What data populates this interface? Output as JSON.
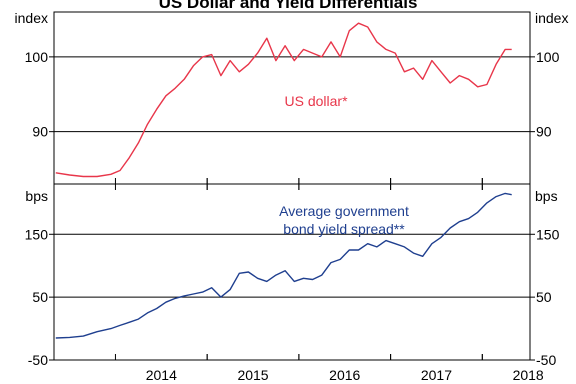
{
  "chart_data": {
    "type": "line",
    "title": "US Dollar and Yield Differentials",
    "x_ticks": [
      "2014",
      "2015",
      "2016",
      "2017",
      "2018"
    ],
    "grid": true,
    "panels": [
      {
        "id": "top",
        "y_unit": "index",
        "ylim": [
          83,
          106
        ],
        "y_ticks": [
          "90",
          "100"
        ],
        "series": [
          {
            "name": "US dollar*",
            "color": "#e8364a",
            "x": [
              2013.35,
              2013.5,
              2013.65,
              2013.8,
              2013.95,
              2014.05,
              2014.15,
              2014.25,
              2014.35,
              2014.45,
              2014.55,
              2014.65,
              2014.75,
              2014.85,
              2014.95,
              2015.05,
              2015.15,
              2015.25,
              2015.35,
              2015.45,
              2015.55,
              2015.65,
              2015.75,
              2015.85,
              2015.95,
              2016.05,
              2016.15,
              2016.25,
              2016.35,
              2016.45,
              2016.55,
              2016.65,
              2016.75,
              2016.85,
              2016.95,
              2017.05,
              2017.15,
              2017.25,
              2017.35,
              2017.45,
              2017.55,
              2017.65,
              2017.75,
              2017.85,
              2017.95,
              2018.05,
              2018.15,
              2018.25,
              2018.32
            ],
            "values": [
              84.5,
              84.2,
              84.0,
              84.0,
              84.3,
              84.8,
              86.5,
              88.5,
              91.0,
              93.0,
              94.8,
              95.8,
              97.0,
              98.8,
              100.0,
              100.3,
              97.5,
              99.5,
              98.0,
              99.0,
              100.5,
              102.5,
              99.5,
              101.5,
              99.5,
              101.0,
              100.5,
              100.0,
              102.0,
              100.0,
              103.5,
              104.5,
              104.0,
              102.0,
              101.0,
              100.5,
              98.0,
              98.5,
              97.0,
              99.5,
              98.0,
              96.5,
              97.5,
              97.0,
              96.0,
              96.3,
              99.0,
              101.0,
              101.0
            ]
          }
        ],
        "annotation": [
          "US dollar*"
        ]
      },
      {
        "id": "bottom",
        "y_unit": "bps",
        "ylim": [
          -50,
          230
        ],
        "y_ticks": [
          "-50",
          "50",
          "150"
        ],
        "series": [
          {
            "name": "Average government bond yield spread**",
            "color": "#1f3f8f",
            "x": [
              2013.35,
              2013.5,
              2013.65,
              2013.8,
              2013.95,
              2014.05,
              2014.15,
              2014.25,
              2014.35,
              2014.45,
              2014.55,
              2014.65,
              2014.75,
              2014.85,
              2014.95,
              2015.05,
              2015.15,
              2015.25,
              2015.35,
              2015.45,
              2015.55,
              2015.65,
              2015.75,
              2015.85,
              2015.95,
              2016.05,
              2016.15,
              2016.25,
              2016.35,
              2016.45,
              2016.55,
              2016.65,
              2016.75,
              2016.85,
              2016.95,
              2017.05,
              2017.15,
              2017.25,
              2017.35,
              2017.45,
              2017.55,
              2017.65,
              2017.75,
              2017.85,
              2017.95,
              2018.05,
              2018.15,
              2018.25,
              2018.32
            ],
            "values": [
              -15,
              -14,
              -12,
              -5,
              0,
              5,
              10,
              15,
              25,
              32,
              42,
              48,
              52,
              55,
              58,
              65,
              50,
              62,
              88,
              90,
              80,
              75,
              85,
              92,
              75,
              80,
              78,
              85,
              105,
              110,
              125,
              125,
              135,
              130,
              140,
              135,
              130,
              120,
              115,
              135,
              145,
              160,
              170,
              175,
              185,
              200,
              210,
              215,
              213
            ]
          }
        ],
        "annotation": [
          "Average government",
          "bond yield spread**"
        ]
      }
    ]
  }
}
